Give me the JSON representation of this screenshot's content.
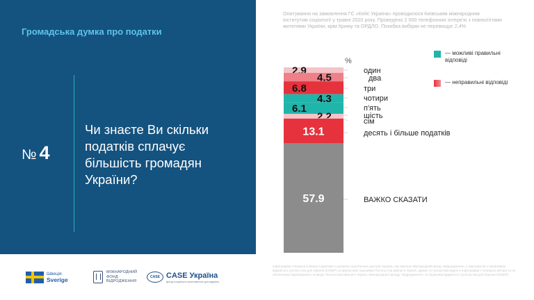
{
  "header": {
    "title": "Громадська думка про податки"
  },
  "question": {
    "number_prefix": "№",
    "number": "4",
    "text": "Чи знаєте Ви скільки податків сплачує більшість громадян України?"
  },
  "source_note": "Опитування на замовлення ГС «Кейс Україна» проводилося Київським міжнародним інститутом соціології у травні 2020 року. Проведено 2 000 телефонних інтерв'ю з повнолітніми жителями України, крім Криму та ОРДЛО. Похибка вибірки не перевищує 2,4%",
  "legend": [
    {
      "label": "— можливі правильні відповіді",
      "color": "#1fb5ab"
    },
    {
      "label": "— неправильні відповіді",
      "color": "#e5323d"
    }
  ],
  "logos": {
    "sweden": {
      "line1": "Швеція",
      "line2": "Sverige"
    },
    "fund": {
      "line1": "МІЖНАРОДНИЙ",
      "line2": "ФОНД",
      "line3": "ВІДРОДЖЕННЯ"
    },
    "case": {
      "mark": "CASE",
      "name": "CASE Україна",
      "sub": "фонд соціально-економічних досліджень"
    }
  },
  "footer_note": "Інфографіка створена в межах Ініціативи з розвитку аналітичних центрів України, яку виконує Міжнародний фонд «Відродження» у партнерстві з Ініціативою відкритого суспільства для Європи (OSIEP) за фінансової підтримки Посольства Швеції в Україні. Думки та позиції викладені у інфографіці є позицією автора та не обов'язково відображають позицію Посольства Швеції в Україні, Міжнародного фонду «Відродження» та Ініціативи відкритого суспільства для Європи (OSIEP).",
  "chart_data": {
    "type": "bar",
    "stacked": true,
    "unit": "%",
    "categories": [
      "один",
      "два",
      "три",
      "чотири",
      "п'ять",
      "шість",
      "сім",
      "десять і більше податків",
      "ВАЖКО СКАЗАТИ"
    ],
    "values": [
      2.9,
      4.5,
      6.8,
      4.3,
      6.1,
      2.2,
      0.3,
      13.1,
      57.9
    ],
    "value_labels": [
      "2.9",
      "4.5",
      "6.8",
      "4.3",
      "6.1",
      "2.2",
      "",
      "13.1",
      "57.9"
    ],
    "colors": [
      "#f5c4c9",
      "#ef7f89",
      "#e5323d",
      "#1fb5ab",
      "#1fb5ab",
      "#f5c4c9",
      "#f5c4c9",
      "#e5323d",
      "#8c8c8c"
    ],
    "label_colors": [
      "#111111",
      "#111111",
      "#111111",
      "#111111",
      "#111111",
      "#111111",
      "#111111",
      "#ffffff",
      "#ffffff"
    ],
    "ylim": [
      0,
      100
    ]
  }
}
